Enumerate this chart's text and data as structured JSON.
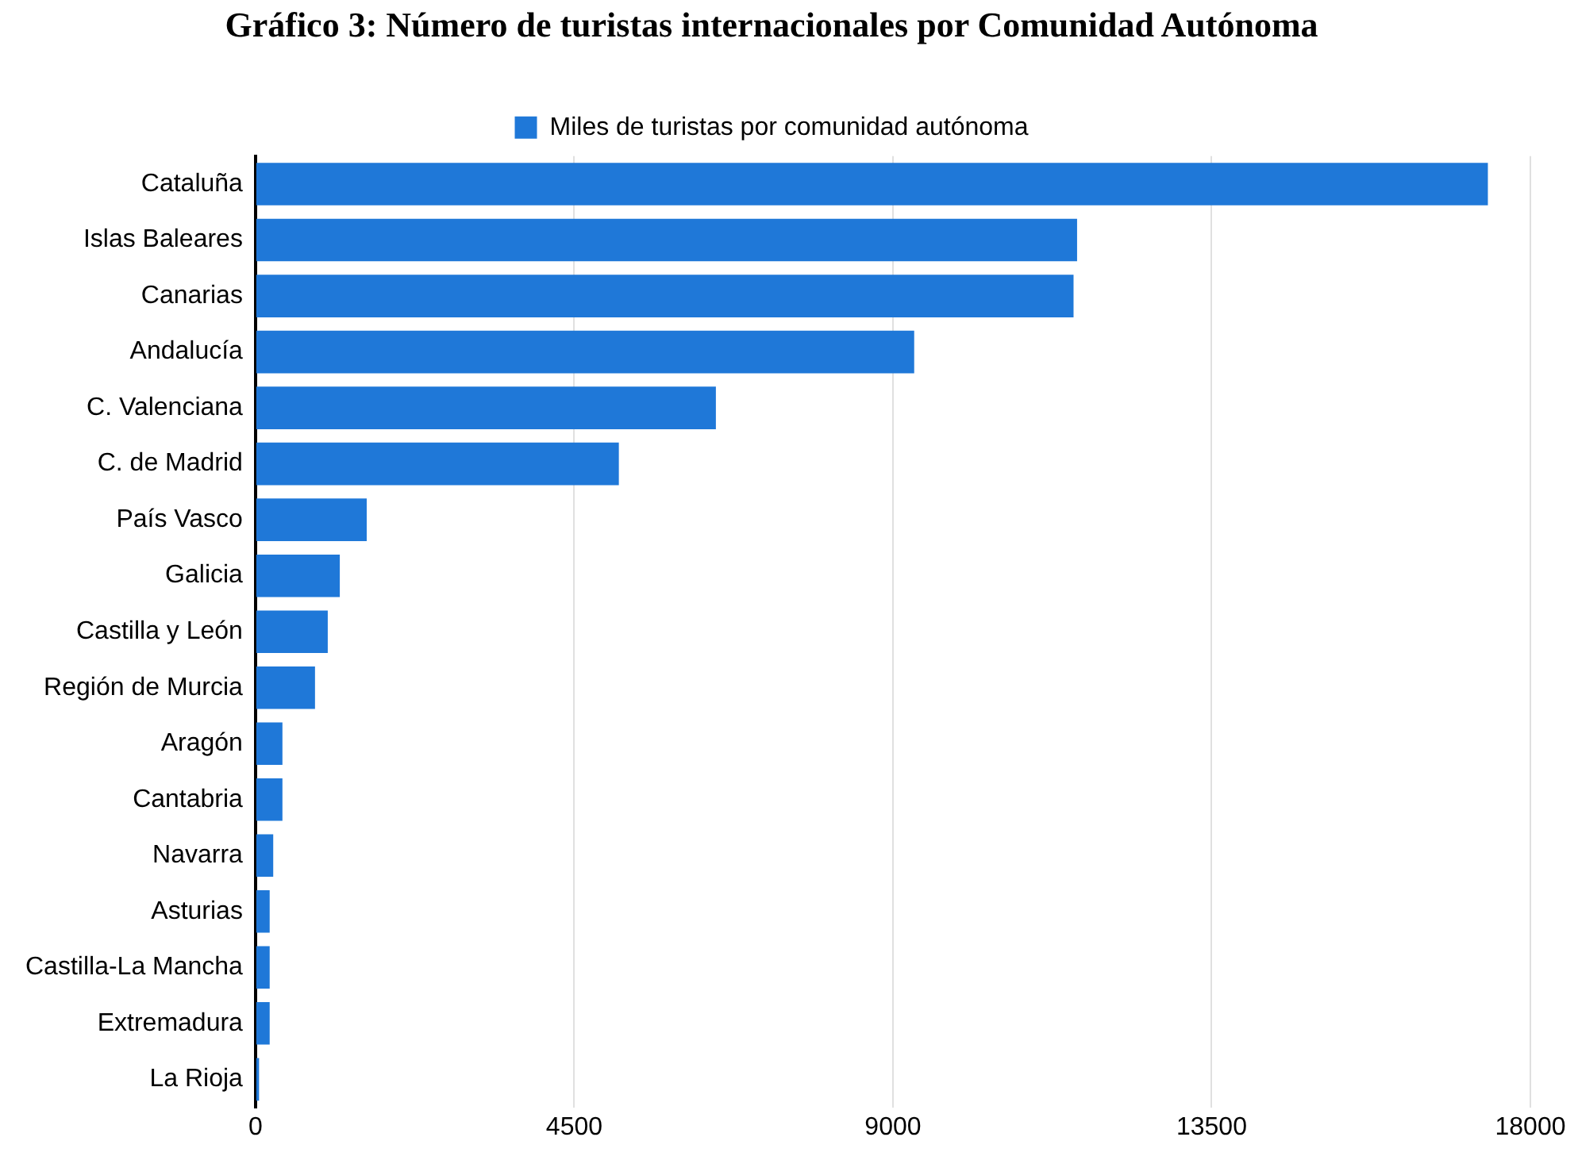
{
  "chart_data": {
    "type": "bar",
    "orientation": "horizontal",
    "title": "Gráfico 3: Número de turistas internacionales por Comunidad Autónoma",
    "categories": [
      "Cataluña",
      "Islas Baleares",
      "Canarias",
      "Andalucía",
      "C. Valenciana",
      "C. de Madrid",
      "País Vasco",
      "Galicia",
      "Castilla y León",
      "Región de Murcia",
      "Aragón",
      "Cantabria",
      "Navarra",
      "Asturias",
      "Castilla-La Mancha",
      "Extremadura",
      "La Rioja"
    ],
    "series": [
      {
        "name": "Miles de turistas por comunidad autónoma",
        "color": "#1f78d8",
        "values": [
          17400,
          11600,
          11550,
          9300,
          6500,
          5130,
          1570,
          1190,
          1020,
          840,
          380,
          380,
          250,
          200,
          200,
          200,
          50
        ]
      }
    ],
    "xlim": [
      0,
      18000
    ],
    "xticks": [
      0,
      4500,
      9000,
      13500,
      18000
    ],
    "grid": "x",
    "legend": "top"
  }
}
